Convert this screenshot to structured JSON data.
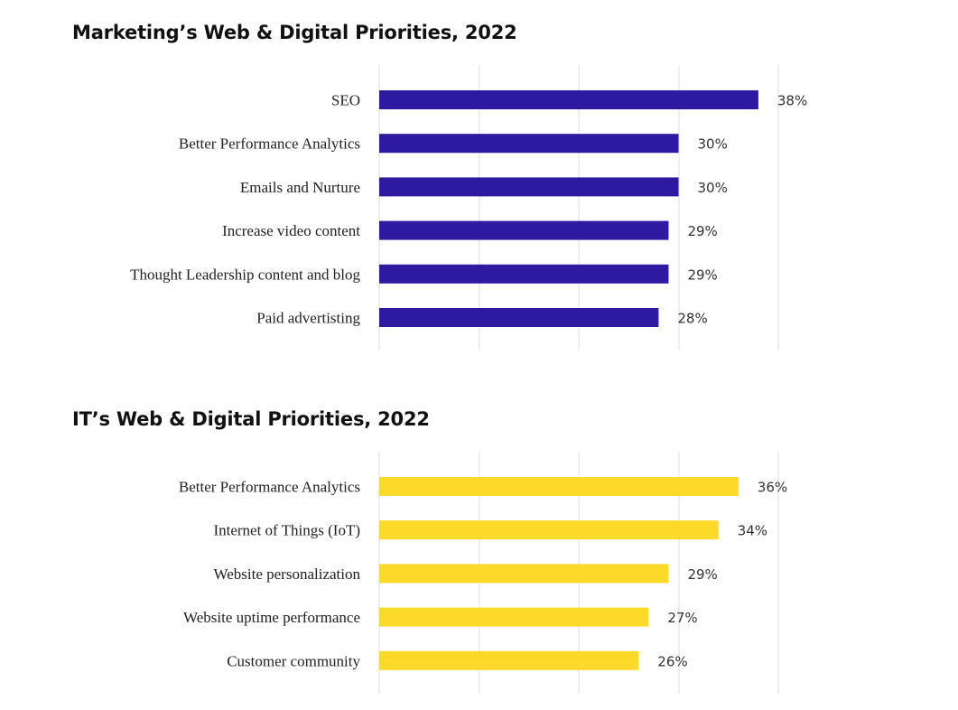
{
  "chart_data": [
    {
      "type": "bar",
      "orientation": "horizontal",
      "title": "Marketing’s Web & Digital Priorities, 2022",
      "categories": [
        "SEO",
        "Better Performance Analytics",
        "Emails and Nurture",
        "Increase video content",
        "Thought Leadership content and blog",
        "Paid advertisting"
      ],
      "values": [
        38,
        30,
        30,
        29,
        29,
        28
      ],
      "value_labels": [
        "38%",
        "30%",
        "30%",
        "29%",
        "29%",
        "28%"
      ],
      "xlim": [
        0,
        40
      ],
      "grid": true,
      "bar_color": "#2e1aa0"
    },
    {
      "type": "bar",
      "orientation": "horizontal",
      "title": "IT’s Web & Digital Priorities, 2022",
      "categories": [
        "Better Performance Analytics",
        "Internet of Things (IoT)",
        "Website personalization",
        "Website uptime performance",
        "Customer community"
      ],
      "values": [
        36,
        34,
        29,
        27,
        26
      ],
      "value_labels": [
        "36%",
        "34%",
        "29%",
        "27%",
        "26%"
      ],
      "xlim": [
        0,
        40
      ],
      "grid": true,
      "bar_color": "#fdd92a"
    }
  ]
}
